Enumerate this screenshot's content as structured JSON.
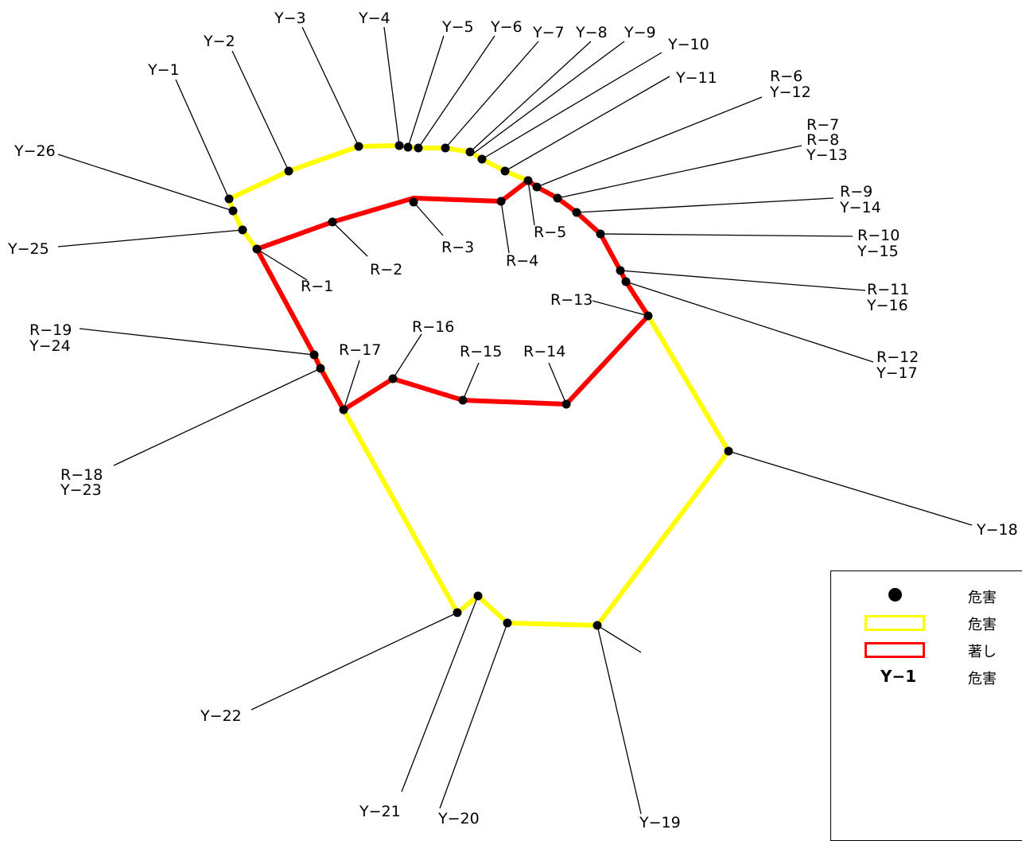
{
  "legend": {
    "items": [
      {
        "symbol": "dot-marker",
        "text": "危害"
      },
      {
        "symbol": "yellow-line",
        "text": "危害"
      },
      {
        "symbol": "red-line",
        "text": "著し"
      },
      {
        "symbol": "point-id",
        "label": "Y−1",
        "text": "危害"
      }
    ]
  },
  "colors": {
    "yellow_zone": "#ffff00",
    "red_zone": "#ff0000",
    "points": "#000000"
  },
  "point_labels": {
    "Y1": "Y−1",
    "Y2": "Y−2",
    "Y3": "Y−3",
    "Y4": "Y−4",
    "Y5": "Y−5",
    "Y6": "Y−6",
    "Y7": "Y−7",
    "Y8": "Y−8",
    "Y9": "Y−9",
    "Y10": "Y−10",
    "Y11": "Y−11",
    "R6": "R−6",
    "Y12": "Y−12",
    "R7": "R−7",
    "R8": "R−8",
    "Y13": "Y−13",
    "R9": "R−9",
    "Y14": "Y−14",
    "R10": "R−10",
    "Y15": "Y−15",
    "R11": "R−11",
    "Y16": "Y−16",
    "R12": "R−12",
    "Y17": "Y−17",
    "Y18": "Y−18",
    "Y19": "Y−19",
    "Y20": "Y−20",
    "Y21": "Y−21",
    "Y22": "Y−22",
    "R18": "R−18",
    "Y23": "Y−23",
    "R19": "R−19",
    "Y24": "Y−24",
    "Y25": "Y−25",
    "Y26": "Y−26",
    "R1": "R−1",
    "R2": "R−2",
    "R3": "R−3",
    "R4": "R−4",
    "R5": "R−5",
    "R13": "R−13",
    "R14": "R−14",
    "R15": "R−15",
    "R16": "R−16",
    "R17": "R−17"
  }
}
